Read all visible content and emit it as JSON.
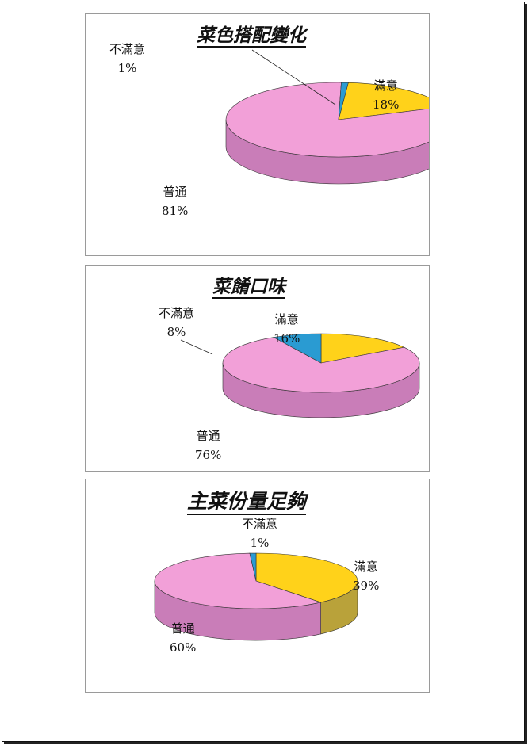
{
  "chart_data": [
    {
      "type": "pie",
      "title": "菜色搭配變化",
      "categories": [
        "滿意",
        "普通",
        "不滿意"
      ],
      "values": [
        18,
        81,
        1
      ],
      "value_labels": [
        "18%",
        "81%",
        "1%"
      ],
      "colors": [
        "#FFD21A",
        "#F2A0D8",
        "#2A9BD2"
      ],
      "side_colors": [
        "#B9A23A",
        "#C97DB8",
        "#1E6F99"
      ],
      "legend": "none",
      "style": "3d"
    },
    {
      "type": "pie",
      "title": "菜餚口味",
      "categories": [
        "滿意",
        "普通",
        "不滿意"
      ],
      "values": [
        16,
        76,
        8
      ],
      "value_labels": [
        "16%",
        "76%",
        "8%"
      ],
      "colors": [
        "#FFD21A",
        "#F2A0D8",
        "#2A9BD2"
      ],
      "side_colors": [
        "#B9A23A",
        "#C97DB8",
        "#1E6F99"
      ],
      "legend": "none",
      "style": "3d"
    },
    {
      "type": "pie",
      "title": "主菜份量足夠",
      "categories": [
        "滿意",
        "普通",
        "不滿意"
      ],
      "values": [
        39,
        60,
        1
      ],
      "value_labels": [
        "39%",
        "60%",
        "1%"
      ],
      "colors": [
        "#FFD21A",
        "#F2A0D8",
        "#2A9BD2"
      ],
      "side_colors": [
        "#B9A23A",
        "#C97DB8",
        "#1E6F99"
      ],
      "legend": "none",
      "style": "3d"
    }
  ]
}
